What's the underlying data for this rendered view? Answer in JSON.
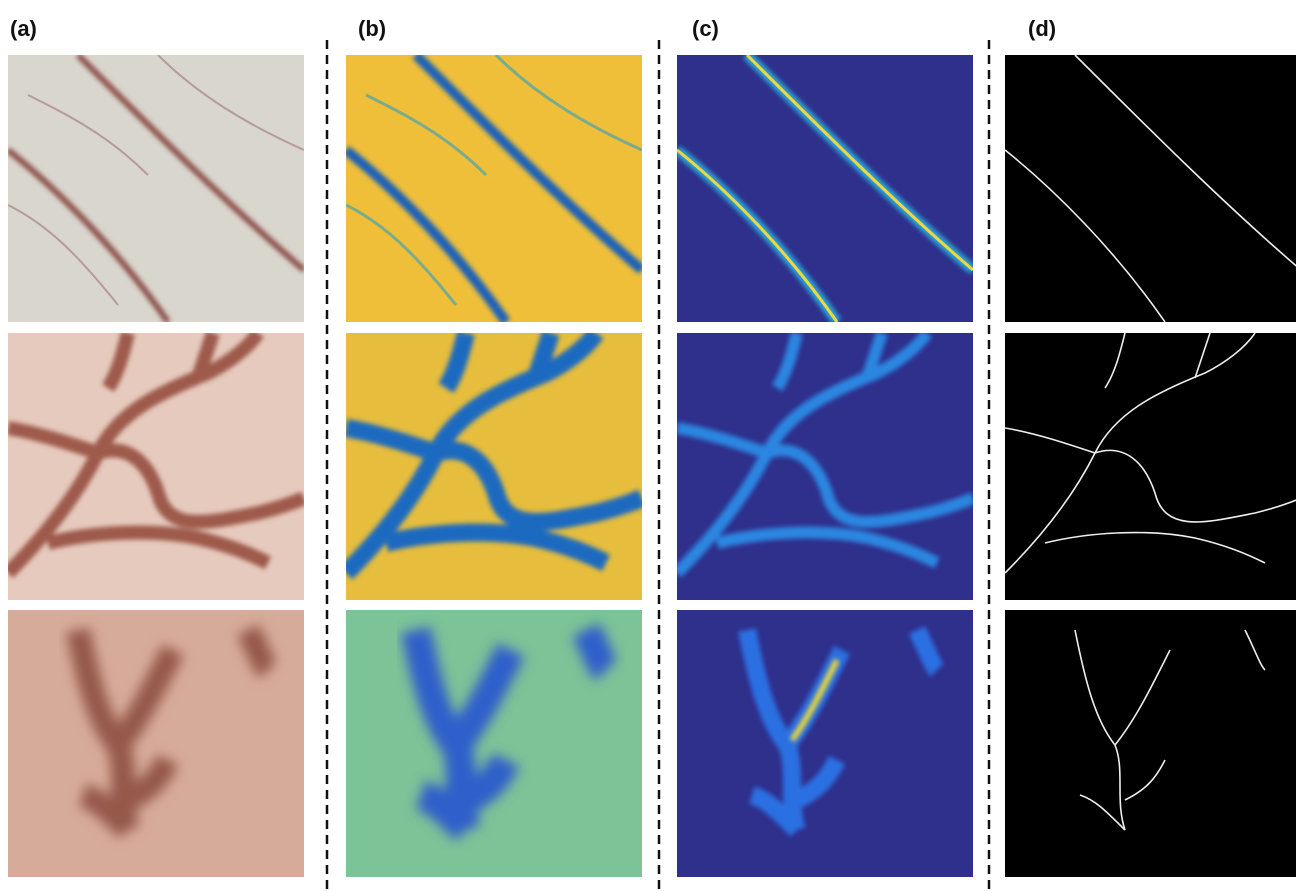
{
  "panels": {
    "labels": [
      "(a)",
      "(b)",
      "(c)",
      "(d)"
    ]
  }
}
